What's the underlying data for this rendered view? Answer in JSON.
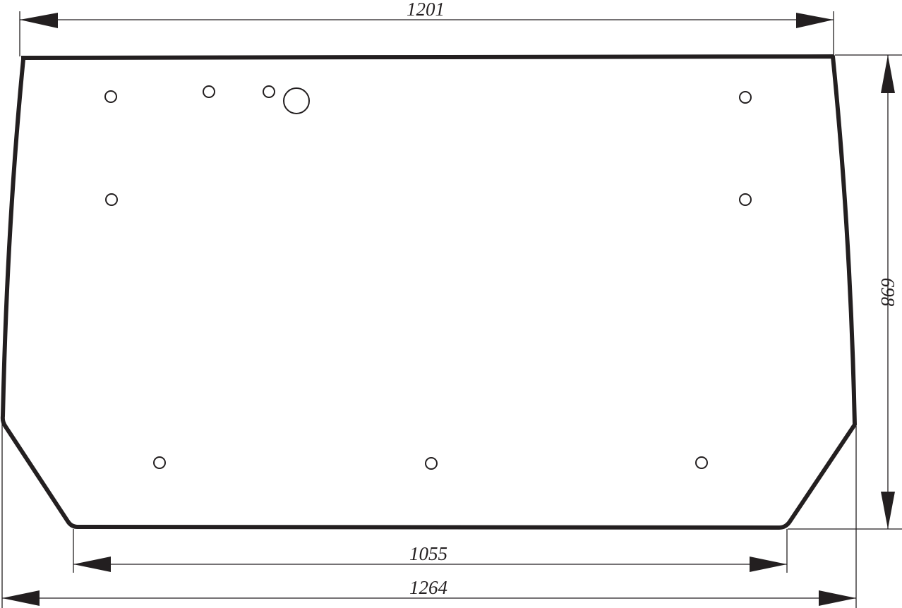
{
  "dimensions": {
    "top_width": "1201",
    "height": "698",
    "bottom_width": "1055",
    "overall_width": "1264"
  },
  "colors": {
    "line": "#231f20",
    "background": "#ffffff"
  }
}
